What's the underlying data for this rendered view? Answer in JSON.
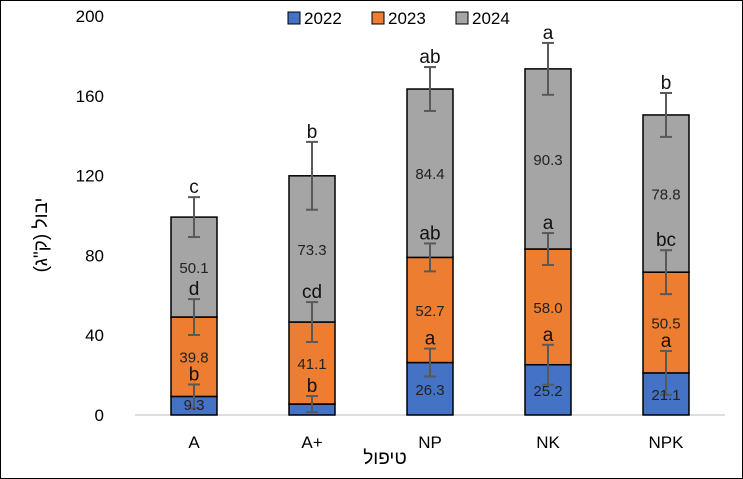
{
  "chart_data": {
    "type": "bar",
    "stacked": true,
    "categories": [
      "A",
      "A+",
      "NP",
      "NK",
      "NPK"
    ],
    "xlabel": "טיפול",
    "ylabel": "יבול (ק\"ג)",
    "ylim": [
      0,
      200
    ],
    "yticks": [
      "0",
      "40",
      "80",
      "120",
      "160",
      "200"
    ],
    "legend_position": "top",
    "grid": false,
    "series": [
      {
        "name": "2022",
        "color": "#4472C4",
        "values": [
          9.3,
          5.5,
          26.3,
          25.2,
          21.1
        ],
        "labels": [
          "9.3",
          "",
          "26.3",
          "25.2",
          "21.1"
        ],
        "errors": [
          6,
          4,
          7,
          10,
          11
        ],
        "letters": [
          "b",
          "b",
          "a",
          "a",
          "a"
        ]
      },
      {
        "name": "2023",
        "color": "#ED7D31",
        "values": [
          39.8,
          41.1,
          52.7,
          58.0,
          50.5
        ],
        "labels": [
          "39.8",
          "41.1",
          "52.7",
          "58.0",
          "50.5"
        ],
        "errors": [
          9,
          10,
          7,
          8,
          11
        ],
        "letters": [
          "d",
          "cd",
          "ab",
          "a",
          "bc"
        ]
      },
      {
        "name": "2024",
        "color": "#A5A5A5",
        "values": [
          50.1,
          73.3,
          84.4,
          90.3,
          78.8
        ],
        "labels": [
          "50.1",
          "73.3",
          "84.4",
          "90.3",
          "78.8"
        ],
        "errors": [
          10,
          17,
          11,
          13,
          11
        ],
        "letters": [
          "c",
          "b",
          "ab",
          "a",
          "b"
        ]
      }
    ]
  }
}
